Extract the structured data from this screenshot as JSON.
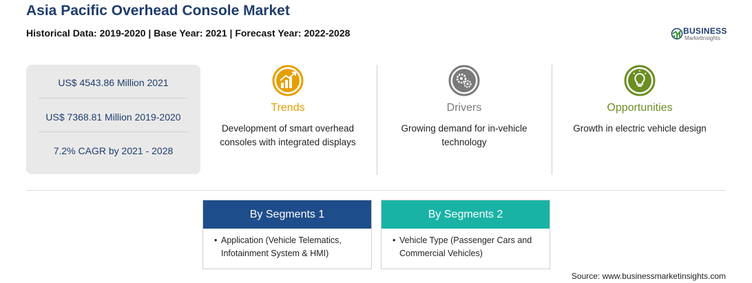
{
  "header": {
    "title": "Asia Pacific Overhead Console Market",
    "subtitle": "Historical Data: 2019-2020 | Base Year: 2021 | Forecast Year: 2022-2028"
  },
  "logo": {
    "name": "BUSINESS",
    "tagline": "MarketInsights"
  },
  "stats": [
    "US$ 4543.86 Million 2021",
    "US$ 7368.81 Million 2019-2020",
    "7.2% CAGR by 2021 - 2028"
  ],
  "columns": [
    {
      "heading": "Trends",
      "text": "Development of smart overhead consoles with integrated displays",
      "icon": "trend-chart-icon",
      "color": "#e59f00"
    },
    {
      "heading": "Drivers",
      "text": "Growing demand for in-vehicle technology",
      "icon": "gears-icon",
      "color": "#7a7a7a"
    },
    {
      "heading": "Opportunities",
      "text": "Growth in electric vehicle design",
      "icon": "lightbulb-icon",
      "color": "#6b8e23"
    }
  ],
  "segments": [
    {
      "heading": "By Segments 1",
      "item": "Application (Vehicle Telematics, Infotainment System & HMI)",
      "color": "#1e4d8b"
    },
    {
      "heading": "By Segments 2",
      "item": "Vehicle Type (Passenger Cars and Commercial Vehicles)",
      "color": "#19b3a6"
    }
  ],
  "source": "Source: www.businessmarketinsights.com"
}
